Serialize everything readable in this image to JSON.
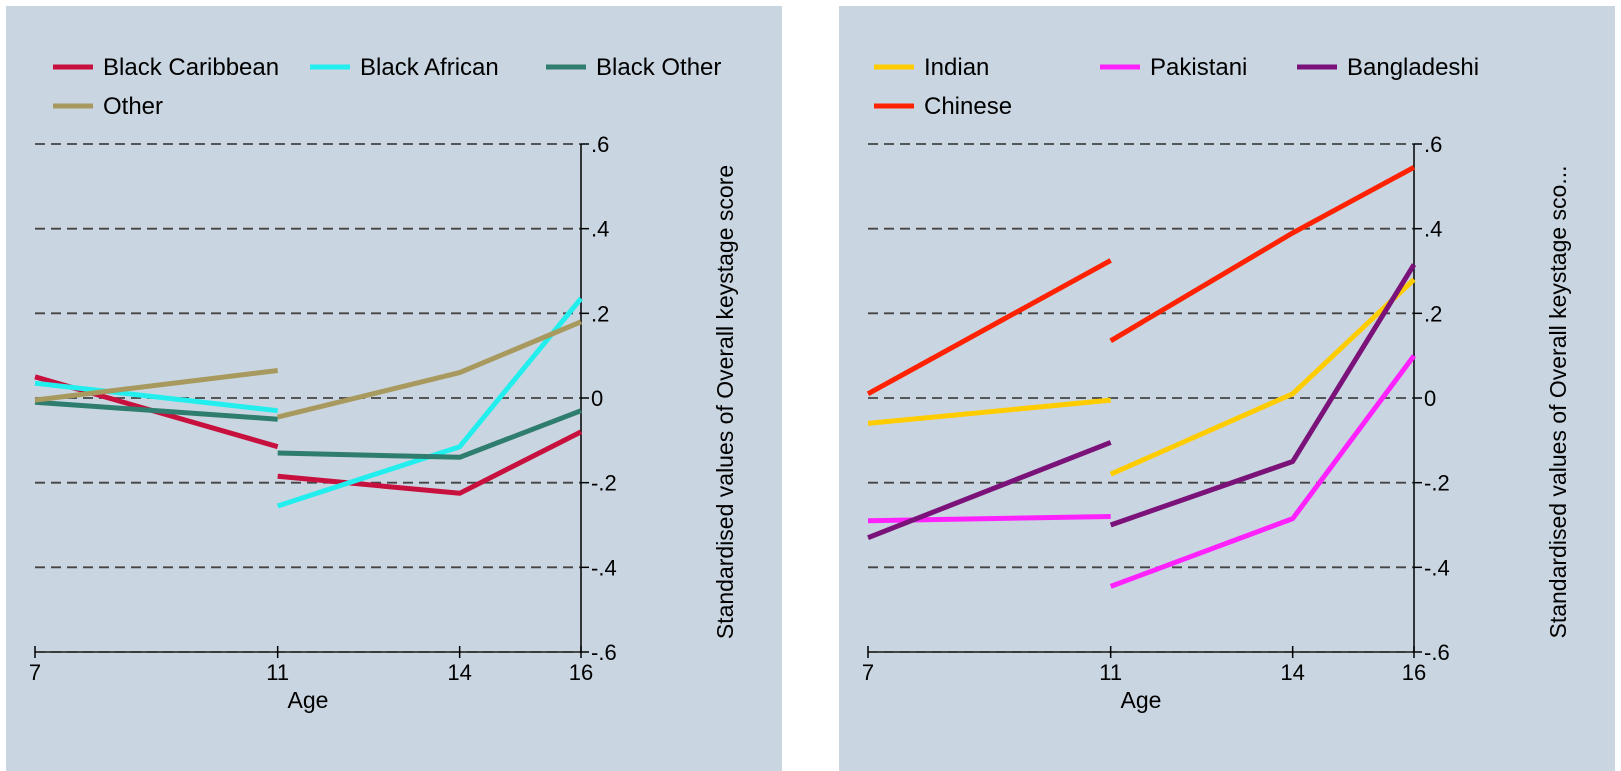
{
  "chart_data": [
    {
      "type": "line",
      "title": "",
      "xlabel": "Age",
      "ylabel": "Standardised values of Overall keystage score",
      "x_ticks": [
        7,
        11,
        14,
        16
      ],
      "y_ticks": [
        ".6",
        ".4",
        ".2",
        "0",
        "-.2",
        "-.4",
        "-.6"
      ],
      "ylim": [
        -0.6,
        0.6
      ],
      "xlim": [
        7,
        16
      ],
      "grid": "horizontal dashed",
      "legend_position": "top",
      "background": "#c9d5e0",
      "legend": [
        {
          "name": "Black Caribbean",
          "color": "#c8103e"
        },
        {
          "name": "Black African",
          "color": "#22eeee"
        },
        {
          "name": "Black Other",
          "color": "#2e7d6e"
        },
        {
          "name": "Other",
          "color": "#a89a5e"
        }
      ],
      "series": [
        {
          "name": "Black Caribbean",
          "color": "#c8103e",
          "segments": [
            [
              [
                7,
                0.05
              ],
              [
                11,
                -0.115
              ]
            ],
            [
              [
                11,
                -0.185
              ],
              [
                14,
                -0.225
              ],
              [
                16,
                -0.08
              ]
            ]
          ]
        },
        {
          "name": "Black African",
          "color": "#22eeee",
          "segments": [
            [
              [
                7,
                0.035
              ],
              [
                11,
                -0.03
              ]
            ],
            [
              [
                11,
                -0.255
              ],
              [
                14,
                -0.115
              ],
              [
                16,
                0.235
              ]
            ]
          ]
        },
        {
          "name": "Black Other",
          "color": "#2e7d6e",
          "segments": [
            [
              [
                7,
                -0.01
              ],
              [
                11,
                -0.05
              ]
            ],
            [
              [
                11,
                -0.13
              ],
              [
                14,
                -0.14
              ],
              [
                16,
                -0.03
              ]
            ]
          ]
        },
        {
          "name": "Other",
          "color": "#a89a5e",
          "segments": [
            [
              [
                7,
                -0.005
              ],
              [
                11,
                0.065
              ]
            ],
            [
              [
                11,
                -0.045
              ],
              [
                14,
                0.06
              ],
              [
                16,
                0.18
              ]
            ]
          ]
        }
      ]
    },
    {
      "type": "line",
      "title": "",
      "xlabel": "Age",
      "ylabel": "Standardised values of Overall keystage sco...",
      "x_ticks": [
        7,
        11,
        14,
        16
      ],
      "y_ticks": [
        ".6",
        ".4",
        ".2",
        "0",
        "-.2",
        "-.4",
        "-.6"
      ],
      "ylim": [
        -0.6,
        0.6
      ],
      "xlim": [
        7,
        16
      ],
      "grid": "horizontal dashed",
      "legend_position": "top",
      "background": "#c9d5e0",
      "legend": [
        {
          "name": "Indian",
          "color": "#ffcc00"
        },
        {
          "name": "Pakistani",
          "color": "#ff22ff"
        },
        {
          "name": "Bangladeshi",
          "color": "#7a127a"
        },
        {
          "name": "Chinese",
          "color": "#ff2200"
        }
      ],
      "series": [
        {
          "name": "Indian",
          "color": "#ffcc00",
          "segments": [
            [
              [
                7,
                -0.06
              ],
              [
                11,
                -0.005
              ]
            ],
            [
              [
                11,
                -0.18
              ],
              [
                14,
                0.01
              ],
              [
                16,
                0.28
              ]
            ]
          ]
        },
        {
          "name": "Pakistani",
          "color": "#ff22ff",
          "segments": [
            [
              [
                7,
                -0.29
              ],
              [
                11,
                -0.28
              ]
            ],
            [
              [
                11,
                -0.445
              ],
              [
                14,
                -0.285
              ],
              [
                16,
                0.1
              ]
            ]
          ]
        },
        {
          "name": "Bangladeshi",
          "color": "#7a127a",
          "segments": [
            [
              [
                7,
                -0.33
              ],
              [
                11,
                -0.105
              ]
            ],
            [
              [
                11,
                -0.3
              ],
              [
                14,
                -0.15
              ],
              [
                16,
                0.315
              ]
            ]
          ]
        },
        {
          "name": "Chinese",
          "color": "#ff2200",
          "segments": [
            [
              [
                7,
                0.01
              ],
              [
                11,
                0.325
              ]
            ],
            [
              [
                11,
                0.135
              ],
              [
                14,
                0.39
              ],
              [
                16,
                0.545
              ]
            ]
          ]
        }
      ]
    }
  ]
}
